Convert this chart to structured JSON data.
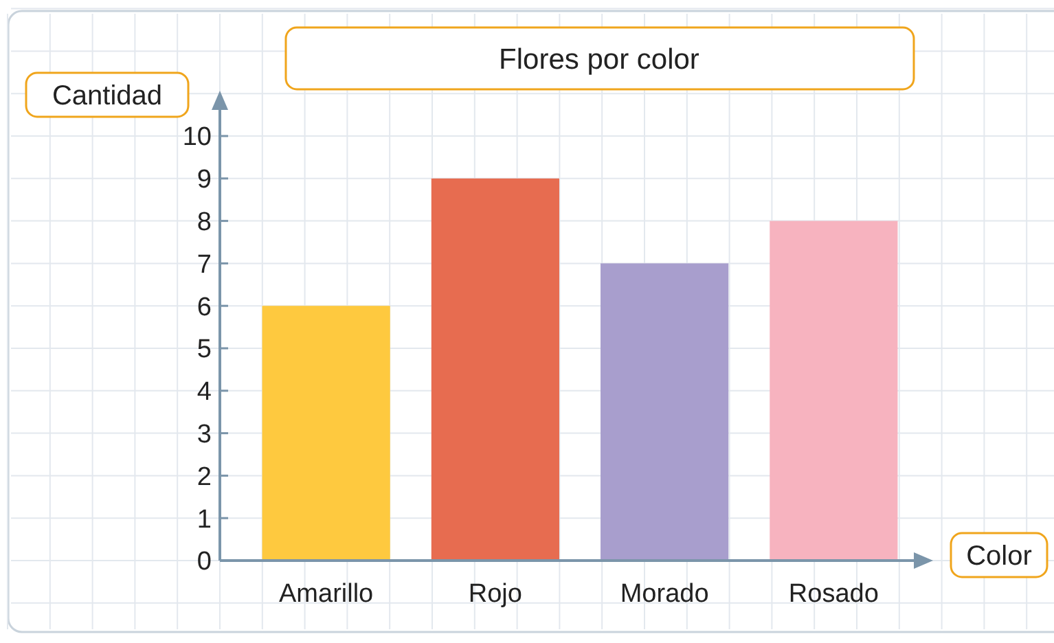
{
  "chart_data": {
    "type": "bar",
    "title": "Flores por color",
    "xlabel": "Color",
    "ylabel": "Cantidad",
    "categories": [
      "Amarillo",
      "Rojo",
      "Morado",
      "Rosado"
    ],
    "values": [
      6,
      9,
      7,
      8
    ],
    "colors": [
      "#fec93f",
      "#e76c50",
      "#a89ecd",
      "#f7b3bf"
    ],
    "ylim": [
      0,
      10
    ],
    "yticks": [
      0,
      1,
      2,
      3,
      4,
      5,
      6,
      7,
      8,
      9,
      10
    ],
    "grid": true
  }
}
